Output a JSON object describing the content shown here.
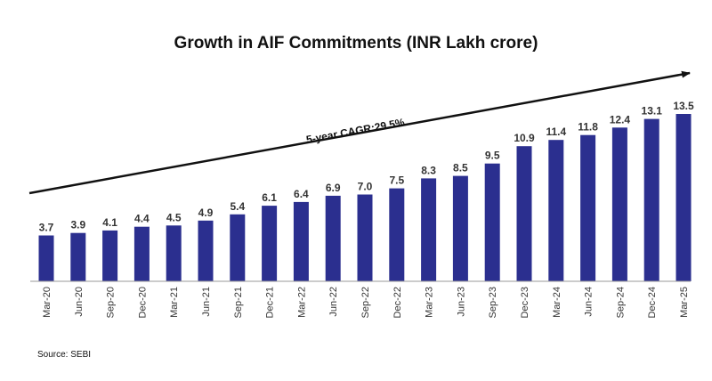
{
  "chart_data": {
    "type": "bar",
    "title": "Growth in AIF Commitments (INR Lakh crore)",
    "categories": [
      "Mar-20",
      "Jun-20",
      "Sep-20",
      "Dec-20",
      "Mar-21",
      "Jun-21",
      "Sep-21",
      "Dec-21",
      "Mar-22",
      "Jun-22",
      "Sep-22",
      "Dec-22",
      "Mar-23",
      "Jun-23",
      "Sep-23",
      "Dec-23",
      "Mar-24",
      "Jun-24",
      "Sep-24",
      "Dec-24",
      "Mar-25"
    ],
    "values": [
      3.7,
      3.9,
      4.1,
      4.4,
      4.5,
      4.9,
      5.4,
      6.1,
      6.4,
      6.9,
      7.0,
      7.5,
      8.3,
      8.5,
      9.5,
      10.9,
      11.4,
      11.8,
      12.4,
      13.1,
      13.5
    ],
    "value_labels": [
      "3.7",
      "3.9",
      "4.1",
      "4.4",
      "4.5",
      "4.9",
      "5.4",
      "6.1",
      "6.4",
      "6.9",
      "7.0",
      "7.5",
      "8.3",
      "8.5",
      "9.5",
      "10.9",
      "11.4",
      "11.8",
      "12.4",
      "13.1",
      "13.5"
    ],
    "annotation": "5-year CAGR:29.5%",
    "bar_color": "#2b2f8f",
    "ylim": [
      0,
      13.5
    ],
    "grid": false,
    "legend": "none"
  },
  "source": "Source: SEBI"
}
